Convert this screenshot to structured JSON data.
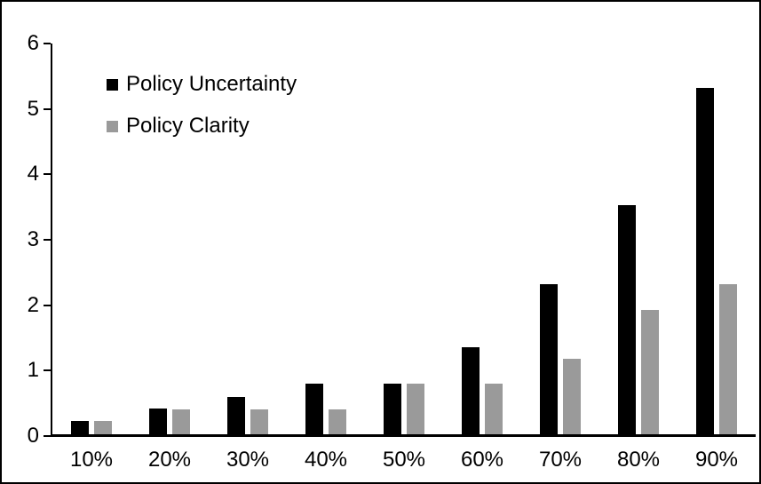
{
  "chart_data": {
    "type": "bar",
    "title": "",
    "xlabel": "",
    "ylabel": "",
    "categories": [
      "10%",
      "20%",
      "30%",
      "40%",
      "50%",
      "60%",
      "70%",
      "80%",
      "90%"
    ],
    "series": [
      {
        "name": "Policy Uncertainty",
        "color": "#000000",
        "values": [
          0.2,
          0.4,
          0.57,
          0.77,
          0.77,
          1.33,
          2.3,
          3.5,
          5.3
        ]
      },
      {
        "name": "Policy Clarity",
        "color": "#9a9a9a",
        "values": [
          0.2,
          0.38,
          0.38,
          0.38,
          0.77,
          0.77,
          1.15,
          1.9,
          2.3
        ]
      }
    ],
    "ylim": [
      0,
      6
    ],
    "yticks": [
      0,
      1,
      2,
      3,
      4,
      5,
      6
    ],
    "grid": false,
    "legend_position": "top-left-inside",
    "frame_color": "#000000",
    "background_color": "#ffffff"
  }
}
